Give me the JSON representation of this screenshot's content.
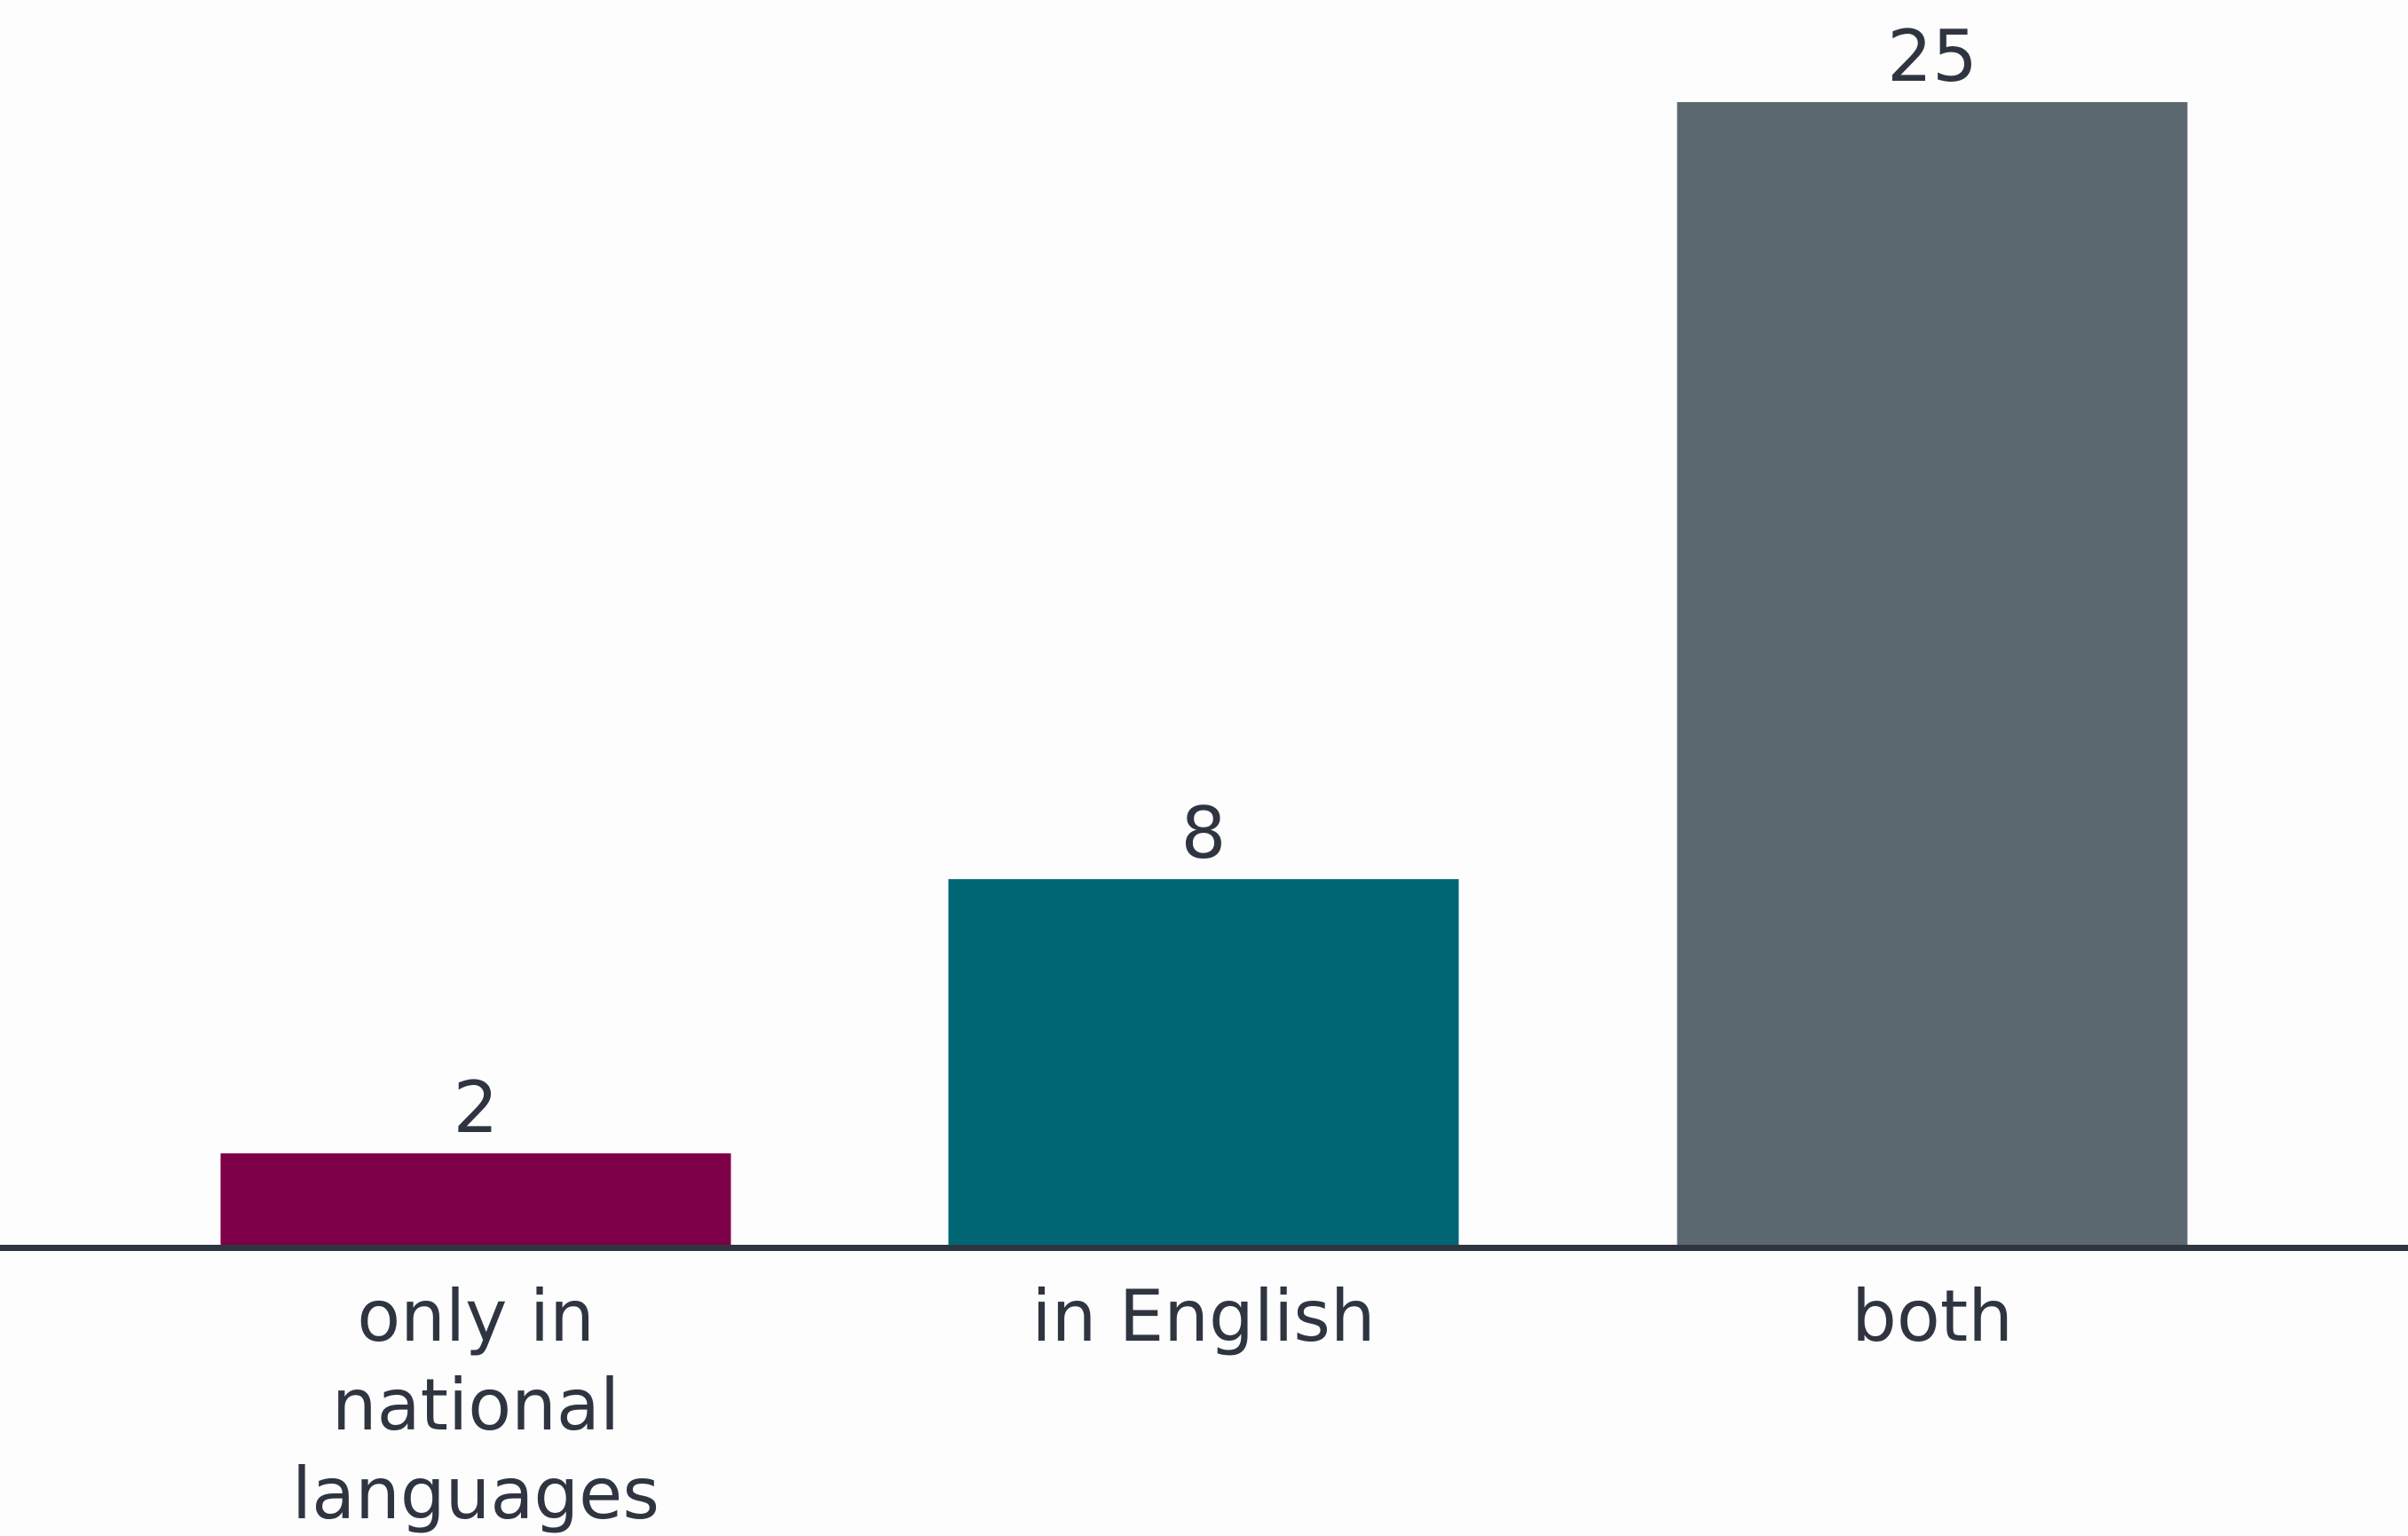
{
  "chart_data": {
    "type": "bar",
    "categories": [
      "only in national languages",
      "in English",
      "both"
    ],
    "category_label_lines": [
      [
        "only in",
        "national",
        "languages"
      ],
      [
        "in English"
      ],
      [
        "both"
      ]
    ],
    "values": [
      2,
      8,
      25
    ],
    "data_labels": [
      "2",
      "8",
      "25"
    ],
    "colors": [
      "#7e0048",
      "#006674",
      "#5c6870"
    ],
    "axis_color": "#2f3540",
    "ylim": [
      0,
      25
    ],
    "grid": false,
    "legend": "none",
    "title": "",
    "xlabel": "",
    "ylabel": ""
  }
}
